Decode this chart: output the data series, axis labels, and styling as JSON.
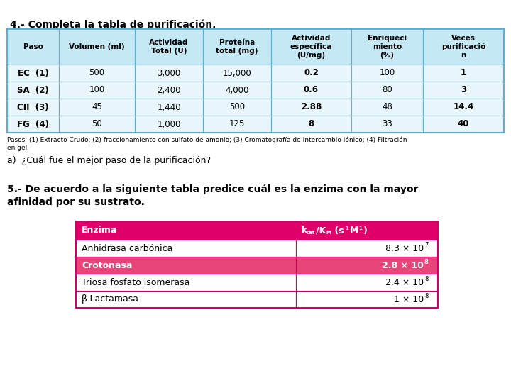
{
  "title1": "4.- Completa la tabla de purificación.",
  "table1_headers": [
    "Paso",
    "Volumen (ml)",
    "Actividad\nTotal (U)",
    "Proteína\ntotal (mg)",
    "Actividad\nespecífica\n(U/mg)",
    "Enriqueci\nmiento\n(%)",
    "Veces\npurificació\nn"
  ],
  "table1_rows": [
    [
      "EC  (1)",
      "500",
      "3,000",
      "15,000",
      "0.2",
      "100",
      "1"
    ],
    [
      "SA  (2)",
      "100",
      "2,400",
      "4,000",
      "0.6",
      "80",
      "3"
    ],
    [
      "CII  (3)",
      "45",
      "1,440",
      "500",
      "2.88",
      "48",
      "14.4"
    ],
    [
      "FG  (4)",
      "50",
      "1,000",
      "125",
      "8",
      "33",
      "40"
    ]
  ],
  "table1_col_bold": [
    true,
    false,
    false,
    false,
    true,
    false,
    true
  ],
  "table1_header_bg": "#c5e8f5",
  "table1_row_bg": "#e8f6fc",
  "table1_border": "#5bafd4",
  "footnote": "Pasos: (1) Extracto Crudo; (2) fraccionamiento con sulfato de amonio; (3) Cromatografía de intercambio iónico; (4) Filtración\nen gel.",
  "question_a": "a)  ¿Cuál fue el mejor paso de la purificación?",
  "title2": "5.- De acuerdo a la siguiente tabla predice cuál es la enzima con la mayor\nafinidad por su sustrato.",
  "table2_rows": [
    [
      "Anhidrasa carbónica",
      "8.3 × 10",
      "7",
      false
    ],
    [
      "Crotonasa",
      "2.8 × 10",
      "8",
      true
    ],
    [
      "Triosa fosfato isomerasa",
      "2.4 × 10",
      "8",
      false
    ],
    [
      "β-Lactamasa",
      "1 × 10",
      "8",
      false
    ]
  ],
  "table2_header_bg": "#e0006a",
  "table2_header_text": "#ffffff",
  "table2_highlight_bg": "#e8457a",
  "table2_highlight_text": "#ffffff",
  "table2_normal_bg": "#ffffff",
  "table2_normal_text": "#000000",
  "table2_border": "#cc0066",
  "bg_color": "#ffffff",
  "text_color": "#000000"
}
